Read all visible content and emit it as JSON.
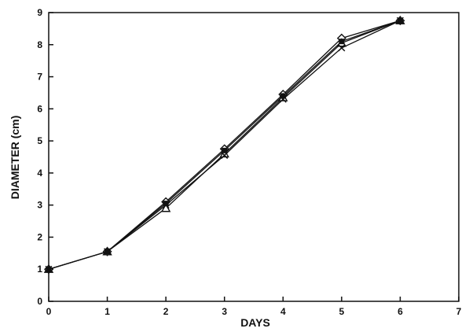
{
  "chart_data": {
    "type": "line",
    "title": "",
    "xlabel": "DAYS",
    "ylabel": "DIAMETER (cm)",
    "xlim": [
      0,
      7
    ],
    "ylim": [
      0,
      9
    ],
    "xticks": [
      "0",
      "1",
      "2",
      "3",
      "4",
      "5",
      "6",
      "7"
    ],
    "yticks": [
      "0",
      "1",
      "2",
      "3",
      "4",
      "5",
      "6",
      "7",
      "8",
      "9"
    ],
    "grid": false,
    "legend": "none",
    "series": [
      {
        "marker": "diamond",
        "x": [
          0,
          1,
          2,
          3,
          4,
          5,
          6
        ],
        "y": [
          1.0,
          1.55,
          3.1,
          4.75,
          6.45,
          8.2,
          8.75
        ]
      },
      {
        "marker": "triangle",
        "x": [
          0,
          1,
          2,
          3,
          4,
          5,
          6
        ],
        "y": [
          1.0,
          1.55,
          2.9,
          4.6,
          6.35,
          8.05,
          8.75
        ]
      },
      {
        "marker": "x",
        "x": [
          0,
          1,
          2,
          3,
          4,
          5,
          6
        ],
        "y": [
          1.0,
          1.55,
          3.0,
          4.55,
          6.3,
          7.9,
          8.75
        ]
      },
      {
        "marker": "square",
        "x": [
          0,
          1,
          2,
          3,
          4,
          5,
          6
        ],
        "y": [
          1.0,
          1.55,
          3.05,
          4.7,
          6.4,
          8.1,
          8.75
        ]
      }
    ]
  }
}
